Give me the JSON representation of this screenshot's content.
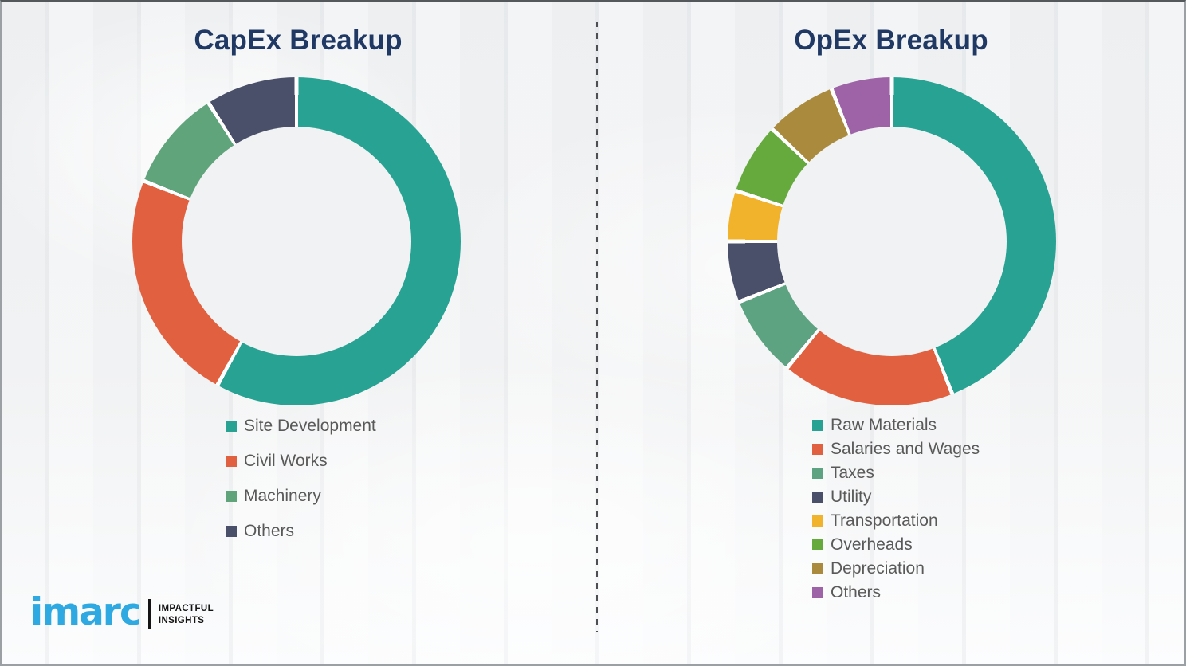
{
  "header": {
    "title_color": "#1F3864"
  },
  "chart_data": [
    {
      "type": "pie",
      "subtype": "donut",
      "title": "CapEx Breakup",
      "categories": [
        "Site Development",
        "Civil Works",
        "Machinery",
        "Others"
      ],
      "values": [
        58,
        23,
        10,
        9
      ],
      "unit": "percent-estimated-from-arc-angles",
      "colors": [
        "#27A293",
        "#E1603F",
        "#60A47C",
        "#4A5069"
      ],
      "legend_position": "bottom-left",
      "donut_hole_ratio": 0.7,
      "segment_gap_color": "#ffffff"
    },
    {
      "type": "pie",
      "subtype": "donut",
      "title": "OpEx Breakup",
      "categories": [
        "Raw Materials",
        "Salaries and Wages",
        "Taxes",
        "Utility",
        "Transportation",
        "Overheads",
        "Depreciation",
        "Others"
      ],
      "values": [
        44,
        17,
        8,
        6,
        5,
        7,
        7,
        6
      ],
      "unit": "percent-estimated-from-arc-angles",
      "colors": [
        "#27A293",
        "#E1603F",
        "#5DA381",
        "#4A5069",
        "#F2B32C",
        "#66A93C",
        "#AA8B3E",
        "#9D63A6"
      ],
      "legend_position": "bottom-left",
      "donut_hole_ratio": 0.7,
      "segment_gap_color": "#ffffff"
    }
  ],
  "divider": {
    "style": "dashed-vertical",
    "color": "#4d4f52"
  },
  "logo": {
    "brand": "imarc",
    "brand_color": "#2FA9E1",
    "tagline_line1": "IMPACTFUL",
    "tagline_line2": "INSIGHTS"
  }
}
